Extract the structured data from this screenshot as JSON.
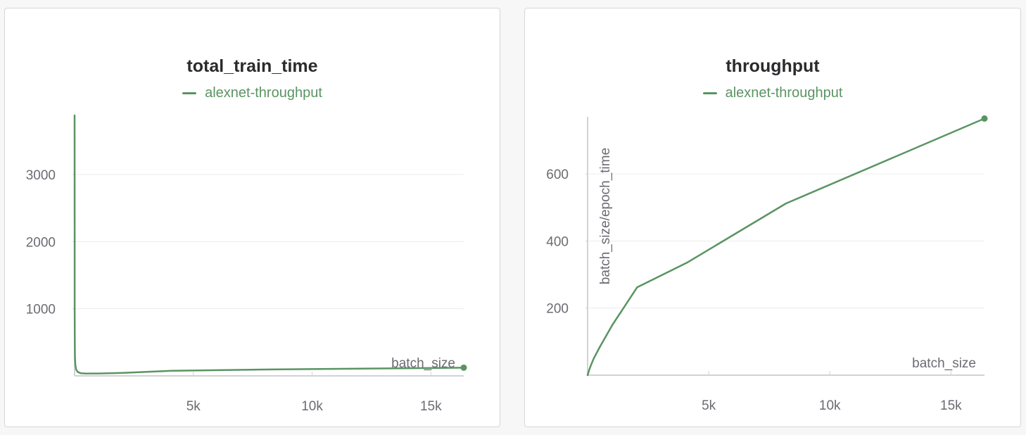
{
  "colors": {
    "series": "#5a9462",
    "axis_text": "#6b6b72",
    "grid": "#ececef",
    "axis": "#d2d2d6"
  },
  "chart_data": [
    {
      "type": "line",
      "title": "total_train_time",
      "xlabel": "batch_size",
      "ylabel": "",
      "xlim": [
        0,
        16384
      ],
      "ylim": [
        0,
        3880
      ],
      "xticks": [
        {
          "value": 5000,
          "label": "5k"
        },
        {
          "value": 10000,
          "label": "10k"
        },
        {
          "value": 15000,
          "label": "15k"
        }
      ],
      "yticks": [
        {
          "value": 1000,
          "label": "1000"
        },
        {
          "value": 2000,
          "label": "2000"
        },
        {
          "value": 3000,
          "label": "3000"
        }
      ],
      "grid": true,
      "legend": "top-center",
      "series": [
        {
          "name": "alexnet-throughput",
          "x": [
            1,
            2,
            4,
            8,
            16,
            32,
            64,
            128,
            256,
            512,
            1024,
            2048,
            4096,
            8192,
            16384
          ],
          "y": [
            3880,
            1950,
            1000,
            520,
            280,
            160,
            95,
            60,
            40,
            35,
            36,
            45,
            75,
            95,
            122
          ]
        }
      ]
    },
    {
      "type": "line",
      "title": "throughput",
      "xlabel": "batch_size",
      "ylabel": "batch_size/epoch_time",
      "xlim": [
        0,
        16384
      ],
      "ylim": [
        0,
        770
      ],
      "xticks": [
        {
          "value": 5000,
          "label": "5k"
        },
        {
          "value": 10000,
          "label": "10k"
        },
        {
          "value": 15000,
          "label": "15k"
        }
      ],
      "yticks": [
        {
          "value": 200,
          "label": "200"
        },
        {
          "value": 400,
          "label": "400"
        },
        {
          "value": 600,
          "label": "600"
        }
      ],
      "grid": true,
      "legend": "top-center",
      "series": [
        {
          "name": "alexnet-throughput",
          "x": [
            1,
            16,
            32,
            64,
            128,
            256,
            512,
            1024,
            2048,
            4096,
            8192,
            16384
          ],
          "y": [
            0,
            3,
            8,
            15,
            28,
            50,
            85,
            150,
            262,
            335,
            512,
            765
          ]
        }
      ]
    }
  ]
}
